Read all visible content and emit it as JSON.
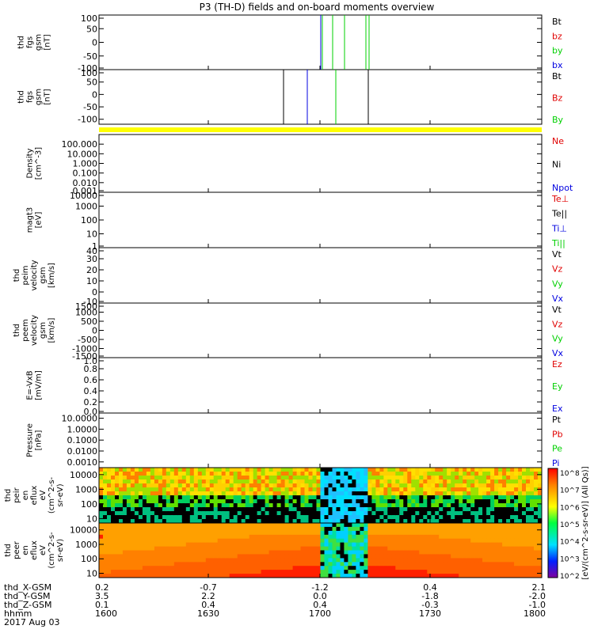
{
  "title": "P3 (TH-D) fields and on-board moments overview",
  "colors": {
    "black": "#000000",
    "red": "#e00000",
    "green": "#00d000",
    "blue": "#0000e0",
    "yellow": "#ffff00",
    "cyan": "#00e0ff"
  },
  "chart_data": [
    {
      "type": "line",
      "ylabel": [
        "thd",
        "fgs",
        "gsm",
        "[nT]"
      ],
      "ylim": [
        -100,
        100
      ],
      "yticks": [
        "100",
        "50",
        "0",
        "-50",
        "-100"
      ],
      "legend": [
        {
          "label": "Bt",
          "color": "black"
        },
        {
          "label": "bz",
          "color": "red"
        },
        {
          "label": "by",
          "color": "green"
        },
        {
          "label": "bx",
          "color": "blue"
        }
      ]
    },
    {
      "type": "line",
      "ylabel": [
        "thd",
        "fgs",
        "gsm",
        "[nT]"
      ],
      "ylim": [
        -120,
        100
      ],
      "yticks": [
        "100",
        "50",
        "0",
        "-50",
        "-100"
      ],
      "legend": [
        {
          "label": "Bt",
          "color": "black"
        },
        {
          "label": "Bz",
          "color": "red"
        },
        {
          "label": "By",
          "color": "green"
        }
      ]
    },
    {
      "type": "line",
      "ylabel": [
        "Density",
        "[cm^-3]"
      ],
      "ylim": [
        0.001,
        1000
      ],
      "log": true,
      "yticks": [
        "100.000",
        "10.000",
        "1.000",
        "0.100",
        "0.010",
        "0.001"
      ],
      "legend": [
        {
          "label": "Ne",
          "color": "red"
        },
        {
          "label": "Ni",
          "color": "black"
        },
        {
          "label": "Npot",
          "color": "blue"
        }
      ]
    },
    {
      "type": "line",
      "ylabel": [
        "magt3",
        "[eV]"
      ],
      "ylim": [
        1,
        10000
      ],
      "log": true,
      "yticks": [
        "10000",
        "1000",
        "100",
        "10",
        "1"
      ],
      "legend": [
        {
          "label": "Te⊥",
          "color": "red"
        },
        {
          "label": "Te||",
          "color": "black"
        },
        {
          "label": "Ti⊥",
          "color": "blue"
        },
        {
          "label": "Ti||",
          "color": "green"
        }
      ]
    },
    {
      "type": "line",
      "ylabel": [
        "thd",
        "peim",
        "velocity",
        "gsm",
        "[km/s]"
      ],
      "ylim": [
        -10,
        40
      ],
      "yticks": [
        "40",
        "30",
        "20",
        "10",
        "0",
        "-10"
      ],
      "legend": [
        {
          "label": "Vt",
          "color": "black"
        },
        {
          "label": "Vz",
          "color": "red"
        },
        {
          "label": "Vy",
          "color": "green"
        },
        {
          "label": "Vx",
          "color": "blue"
        }
      ]
    },
    {
      "type": "line",
      "ylabel": [
        "thd",
        "peem",
        "velocity",
        "gsm",
        "[km/s]"
      ],
      "ylim": [
        -1500,
        1500
      ],
      "yticks": [
        "1500",
        "1000",
        "500",
        "0",
        "-500",
        "-1000",
        "-1500"
      ],
      "legend": [
        {
          "label": "Vt",
          "color": "black"
        },
        {
          "label": "Vz",
          "color": "red"
        },
        {
          "label": "Vy",
          "color": "green"
        },
        {
          "label": "Vx",
          "color": "blue"
        }
      ]
    },
    {
      "type": "line",
      "ylabel": [
        "E=-VxB",
        "[mV/m]"
      ],
      "ylim": [
        0,
        1
      ],
      "yticks": [
        "1.0",
        "0.8",
        "0.6",
        "0.4",
        "0.2",
        "0.0"
      ],
      "legend": [
        {
          "label": "Ez",
          "color": "red"
        },
        {
          "label": "Ey",
          "color": "green"
        },
        {
          "label": "Ex",
          "color": "blue"
        }
      ]
    },
    {
      "type": "line",
      "ylabel": [
        "Pressure",
        "[nPa]"
      ],
      "ylim": [
        0.0003,
        30
      ],
      "log": true,
      "yticks": [
        "10.0000",
        "1.0000",
        "0.1000",
        "0.0100",
        "0.0010"
      ],
      "legend": [
        {
          "label": "Pt",
          "color": "black"
        },
        {
          "label": "Pb",
          "color": "red"
        },
        {
          "label": "Pe",
          "color": "green"
        },
        {
          "label": "Pi",
          "color": "blue"
        }
      ]
    },
    {
      "type": "heatmap",
      "ylabel": [
        "thd",
        "peir",
        "en",
        "eflux",
        "eV",
        "(cm^2-s-",
        "sr-eV)"
      ],
      "ylim": [
        5,
        30000
      ],
      "log": true,
      "yticks": [
        "10000",
        "1000",
        "100",
        "10"
      ]
    },
    {
      "type": "heatmap",
      "ylabel": [
        "thd",
        "peer",
        "en",
        "eflux",
        "eV",
        "(cm^2-s-",
        "sr-eV)"
      ],
      "ylim": [
        5,
        30000
      ],
      "log": true,
      "yticks": [
        "10000",
        "1000",
        "100",
        "10"
      ]
    }
  ],
  "colorbar": {
    "labels": [
      "10^8",
      "10^7",
      "10^6",
      "10^5",
      "10^4",
      "10^3",
      "10^2"
    ],
    "title": "[eV/(cm^2-s-sr-eV)] (All Qs)]"
  },
  "xaxis": {
    "rows": [
      {
        "label": "thd_X-GSM",
        "values": [
          "0.2",
          "-0.7",
          "-1.2",
          "0.4",
          "2.1"
        ]
      },
      {
        "label": "thd_Y-GSM",
        "values": [
          "3.5",
          "2.2",
          "0.0",
          "-1.8",
          "-2.0"
        ]
      },
      {
        "label": "thd_Z-GSM",
        "values": [
          "0.1",
          "0.4",
          "0.4",
          "-0.3",
          "-1.0"
        ]
      },
      {
        "label": "hhmm",
        "values": [
          "1600",
          "1630",
          "1700",
          "1730",
          "1800"
        ]
      }
    ],
    "date": "2017 Aug 03"
  }
}
